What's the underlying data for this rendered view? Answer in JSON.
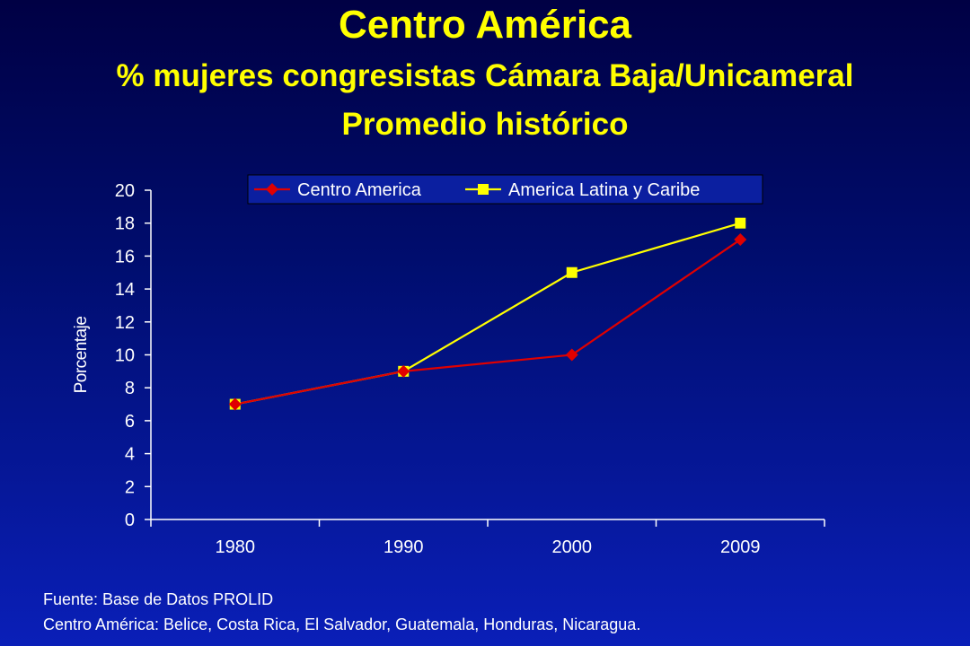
{
  "header": {
    "title": "Centro América",
    "subtitle": "% mujeres congresistas Cámara Baja/Unicameral",
    "subtitle2": "Promedio histórico"
  },
  "footer": {
    "source": "Fuente: Base de Datos PROLID",
    "note": "Centro América: Belice, Costa Rica, El Salvador, Guatemala, Honduras, Nicaragua."
  },
  "colors": {
    "background": "#000d6e",
    "title": "#ffff00",
    "series_centro": "#e00000",
    "series_latina": "#ffff00",
    "legend_bg": "#0b1fa0",
    "axis": "#ffffff"
  },
  "chart_data": {
    "type": "line",
    "categories": [
      "1980",
      "1990",
      "2000",
      "2009"
    ],
    "series": [
      {
        "name": "Centro America",
        "values": [
          7,
          9,
          10,
          17
        ]
      },
      {
        "name": "America Latina y Caribe",
        "values": [
          7,
          9,
          15,
          18
        ]
      }
    ],
    "ylabel": "Porcentaje",
    "xlabel": "",
    "ylim": [
      0,
      20
    ],
    "yticks": [
      0,
      2,
      4,
      6,
      8,
      10,
      12,
      14,
      16,
      18,
      20
    ],
    "grid": false,
    "legend_position": "top"
  }
}
